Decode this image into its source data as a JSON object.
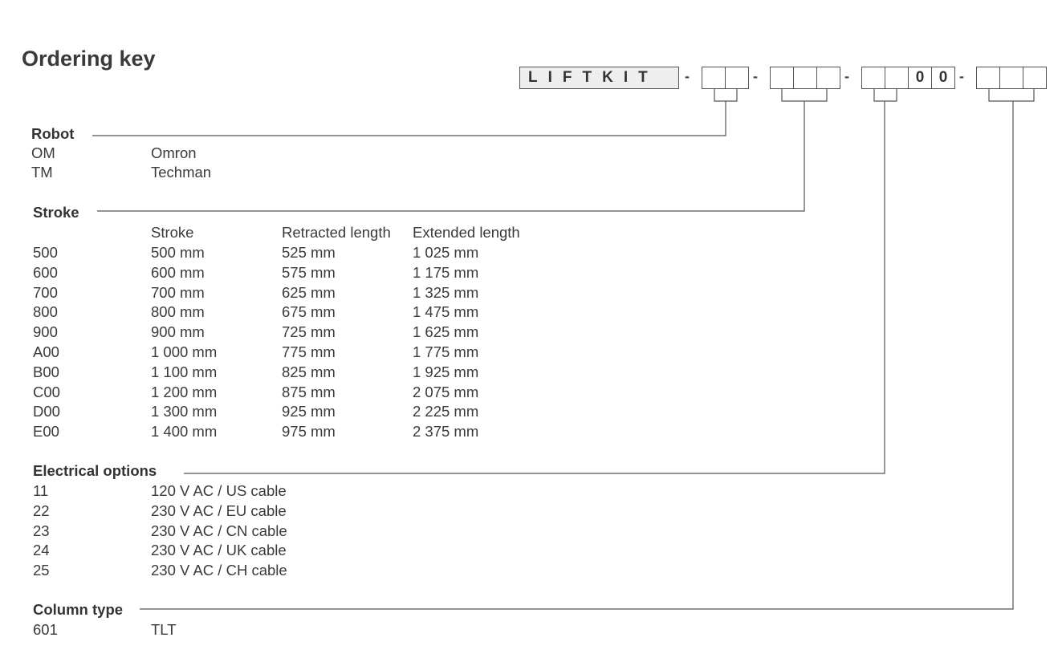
{
  "title": "Ordering key",
  "key": {
    "prefix": "LIFTKIT",
    "separator": "-",
    "fixed_digits": [
      "0",
      "0"
    ]
  },
  "robot": {
    "heading": "Robot",
    "rows": [
      [
        "OM",
        "Omron"
      ],
      [
        "TM",
        "Techman"
      ]
    ]
  },
  "stroke": {
    "heading": "Stroke",
    "columns": [
      "Stroke",
      "Retracted length",
      "Extended length"
    ],
    "rows": [
      [
        "500",
        "500 mm",
        "525 mm",
        "1 025 mm"
      ],
      [
        "600",
        "600 mm",
        "575 mm",
        "1 175 mm"
      ],
      [
        "700",
        "700 mm",
        "625 mm",
        "1 325 mm"
      ],
      [
        "800",
        "800 mm",
        "675 mm",
        "1 475 mm"
      ],
      [
        "900",
        "900 mm",
        "725 mm",
        "1 625 mm"
      ],
      [
        "A00",
        "1 000 mm",
        "775 mm",
        "1  775 mm"
      ],
      [
        "B00",
        "1 100 mm",
        "825 mm",
        "1 925 mm"
      ],
      [
        "C00",
        "1 200 mm",
        "875 mm",
        "2 075 mm"
      ],
      [
        "D00",
        "1 300 mm",
        "925 mm",
        "2 225 mm"
      ],
      [
        "E00",
        "1 400 mm",
        "975 mm",
        "2 375 mm"
      ]
    ]
  },
  "electrical": {
    "heading": "Electrical options",
    "rows": [
      [
        "11",
        "120 V AC / US cable"
      ],
      [
        "22",
        "230 V AC / EU cable"
      ],
      [
        "23",
        "230 V AC / CN cable"
      ],
      [
        "24",
        "230 V AC / UK cable"
      ],
      [
        "25",
        "230 V AC / CH cable"
      ]
    ]
  },
  "column": {
    "heading": "Column type",
    "rows": [
      [
        "601",
        "TLT"
      ]
    ]
  }
}
